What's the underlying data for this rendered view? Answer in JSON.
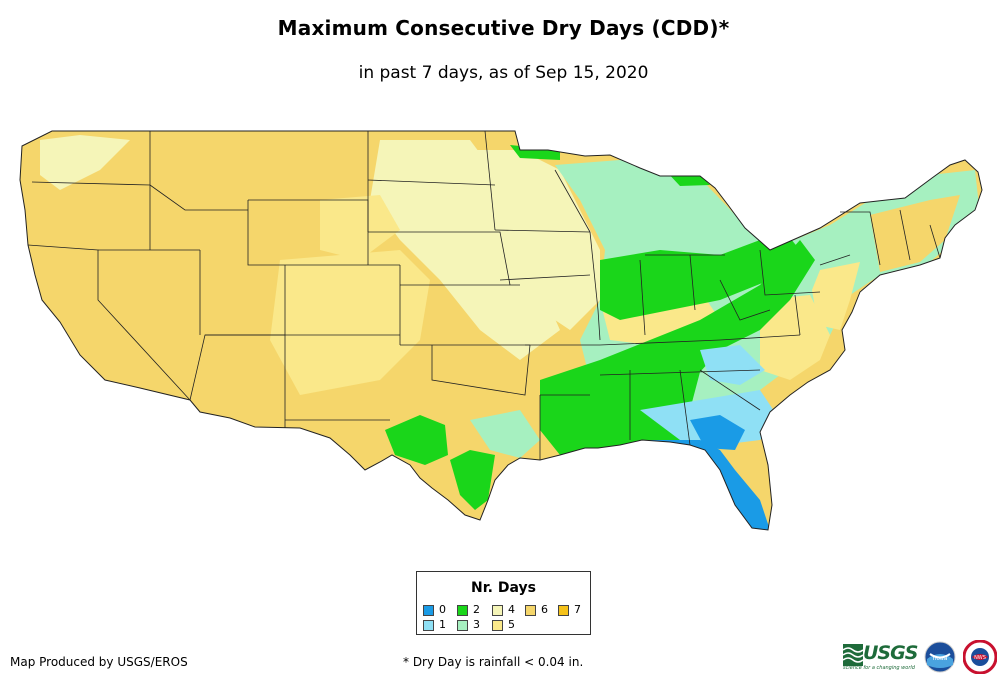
{
  "title": "Maximum Consecutive Dry Days (CDD)*",
  "subtitle": "in past 7 days, as of Sep 15, 2020",
  "legend": {
    "title": "Nr. Days",
    "items": [
      {
        "label": "0",
        "color": "#1a9be6"
      },
      {
        "label": "1",
        "color": "#8fe0f5"
      },
      {
        "label": "2",
        "color": "#1ad61a"
      },
      {
        "label": "3",
        "color": "#a6f0c0"
      },
      {
        "label": "4",
        "color": "#f5f5b8"
      },
      {
        "label": "5",
        "color": "#fae88a"
      },
      {
        "label": "6",
        "color": "#f5d66b"
      },
      {
        "label": "7",
        "color": "#f5c21a"
      }
    ]
  },
  "footer": {
    "credit": "Map Produced by USGS/EROS",
    "footnote": "* Dry Day is rainfall < 0.04 in."
  },
  "logos": {
    "usgs": "USGS",
    "usgs_tagline": "science for a changing world",
    "noaa": "noaa",
    "nws": "NWS"
  }
}
